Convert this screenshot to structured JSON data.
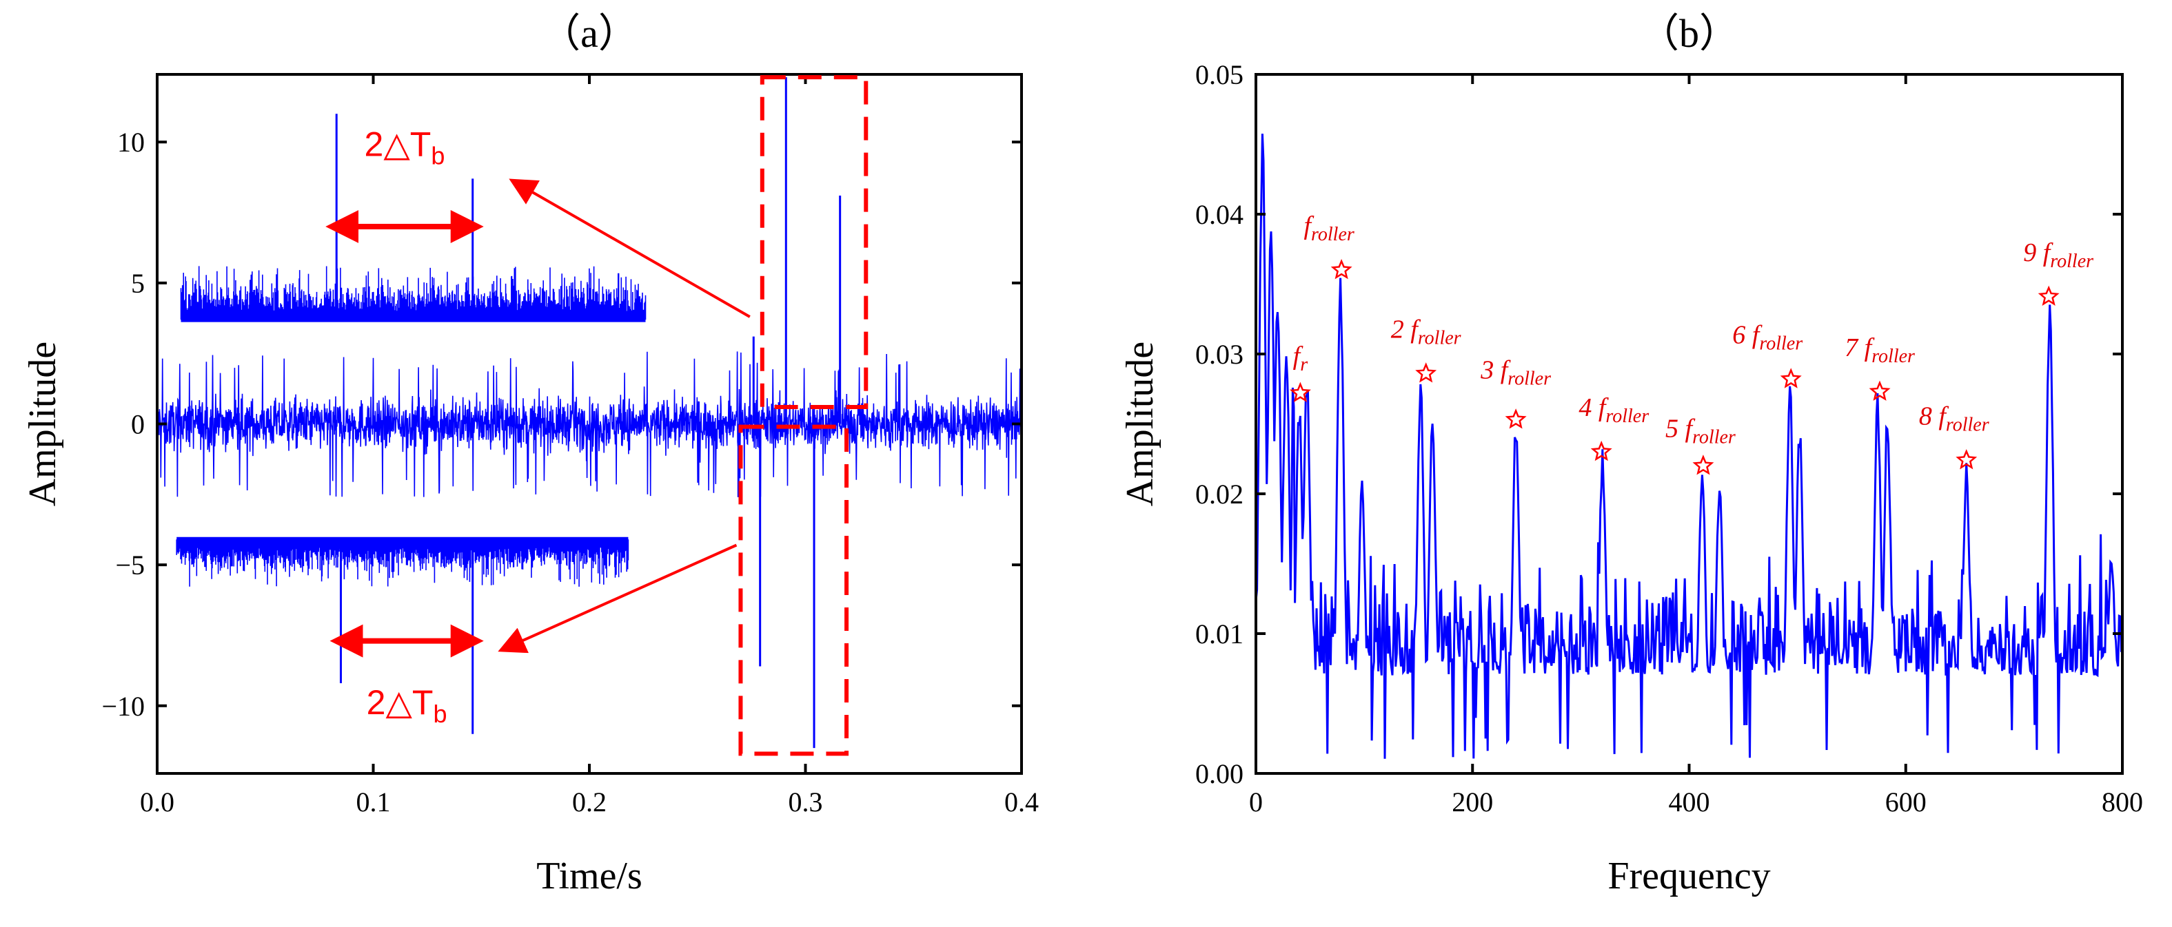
{
  "colors": {
    "signal": "#0000ff",
    "annotation": "#ff0000",
    "axis": "#000000"
  },
  "chart_data": [
    {
      "type": "line",
      "panel_label": "（a）",
      "xlabel": "Time/s",
      "ylabel": "Amplitude",
      "xlim": [
        0.0,
        0.4
      ],
      "ylim": [
        -12.4,
        12.4
      ],
      "xticks": [
        0.0,
        0.1,
        0.2,
        0.3,
        0.4
      ],
      "xtick_labels": [
        "0.0",
        "0.1",
        "0.2",
        "0.3",
        "0.4"
      ],
      "yticks": [
        -10,
        -5,
        0,
        5,
        10
      ],
      "ytick_labels": [
        "−10",
        "−5",
        "0",
        "5",
        "10"
      ],
      "series": [
        {
          "name": "vibration signal",
          "description": "noise band about ±2.5 with impulses",
          "impulses": [
            {
              "t": 0.276,
              "value": 3.1
            },
            {
              "t": 0.279,
              "value": -8.6
            },
            {
              "t": 0.291,
              "value": 12.3
            },
            {
              "t": 0.304,
              "value": -11.5
            },
            {
              "t": 0.316,
              "value": 8.1
            },
            {
              "t": 0.269,
              "value": -2.6
            }
          ]
        }
      ],
      "insets": [
        {
          "name": "upper zoom",
          "t_start": 0.011,
          "t_end": 0.226,
          "baseline": 3.7,
          "noise_top": 5.6,
          "impulses": [
            {
              "t": 0.083,
              "value": 11.0
            },
            {
              "t": 0.146,
              "value": 8.7
            }
          ]
        },
        {
          "name": "lower zoom",
          "t_start": 0.009,
          "t_end": 0.218,
          "baseline": -4.1,
          "noise_bottom": -5.8,
          "impulses": [
            {
              "t": 0.085,
              "value": -9.2
            },
            {
              "t": 0.146,
              "value": -11.0
            }
          ]
        }
      ],
      "annotations": [
        {
          "text_main": "2△T",
          "text_sub": "b",
          "label": "upper period",
          "t1": 0.083,
          "t2": 0.146,
          "y": 7.0
        },
        {
          "text_main": "2△T",
          "text_sub": "b",
          "label": "lower period",
          "t1": 0.085,
          "t2": 0.146,
          "y": -7.7
        }
      ],
      "highlight_boxes": [
        {
          "name": "upper box",
          "t": [
            0.28,
            0.328
          ],
          "y": [
            0.6,
            12.3
          ]
        },
        {
          "name": "lower box",
          "t": [
            0.27,
            0.319
          ],
          "y": [
            -11.7,
            -0.1
          ]
        }
      ]
    },
    {
      "type": "line",
      "panel_label": "（b）",
      "xlabel": "Frequency",
      "ylabel": "Amplitude",
      "xlim": [
        0,
        800
      ],
      "ylim": [
        0.0,
        0.05
      ],
      "xticks": [
        0,
        200,
        400,
        600,
        800
      ],
      "xtick_labels": [
        "0",
        "200",
        "400",
        "600",
        "800"
      ],
      "yticks": [
        0.0,
        0.01,
        0.02,
        0.03,
        0.04,
        0.05
      ],
      "ytick_labels": [
        "0.00",
        "0.01",
        "0.02",
        "0.03",
        "0.04",
        "0.05"
      ],
      "series": [
        {
          "name": "envelope spectrum",
          "peaks": [
            {
              "f": 6,
              "value": 0.0465
            },
            {
              "f": 14,
              "value": 0.04
            },
            {
              "f": 20,
              "value": 0.034
            },
            {
              "f": 28,
              "value": 0.031
            },
            {
              "f": 40,
              "value": 0.027
            },
            {
              "f": 47,
              "value": 0.029
            },
            {
              "f": 78,
              "value": 0.036
            },
            {
              "f": 98,
              "value": 0.021
            },
            {
              "f": 152,
              "value": 0.0288
            },
            {
              "f": 163,
              "value": 0.026
            },
            {
              "f": 240,
              "value": 0.0255
            },
            {
              "f": 320,
              "value": 0.0232
            },
            {
              "f": 412,
              "value": 0.0222
            },
            {
              "f": 428,
              "value": 0.021
            },
            {
              "f": 493,
              "value": 0.0284
            },
            {
              "f": 502,
              "value": 0.0252
            },
            {
              "f": 574,
              "value": 0.0275
            },
            {
              "f": 583,
              "value": 0.026
            },
            {
              "f": 656,
              "value": 0.0225
            },
            {
              "f": 733,
              "value": 0.0343
            },
            {
              "f": 790,
              "value": 0.016
            }
          ]
        }
      ],
      "markers": [
        {
          "label": "fr",
          "f": 41,
          "value": 0.0272,
          "coef": "",
          "main": "f",
          "sub": "r"
        },
        {
          "label": "froller",
          "f": 79,
          "value": 0.036,
          "coef": "",
          "main": "f",
          "sub": "roller"
        },
        {
          "label": "2froller",
          "f": 157,
          "value": 0.0286,
          "coef": "2 ",
          "main": "f",
          "sub": "roller"
        },
        {
          "label": "3froller",
          "f": 240,
          "value": 0.0253,
          "coef": "3 ",
          "main": "f",
          "sub": "roller"
        },
        {
          "label": "4froller",
          "f": 319,
          "value": 0.023,
          "coef": "4 ",
          "main": "f",
          "sub": "roller"
        },
        {
          "label": "5froller",
          "f": 413,
          "value": 0.022,
          "coef": "5 ",
          "main": "f",
          "sub": "roller"
        },
        {
          "label": "6froller",
          "f": 494,
          "value": 0.0282,
          "coef": "6 ",
          "main": "f",
          "sub": "roller"
        },
        {
          "label": "7froller",
          "f": 576,
          "value": 0.0273,
          "coef": "7 ",
          "main": "f",
          "sub": "roller"
        },
        {
          "label": "8froller",
          "f": 656,
          "value": 0.0224,
          "coef": "8 ",
          "main": "f",
          "sub": "roller"
        },
        {
          "label": "9froller",
          "f": 732,
          "value": 0.0341,
          "coef": "9 ",
          "main": "f",
          "sub": "roller"
        }
      ]
    }
  ]
}
